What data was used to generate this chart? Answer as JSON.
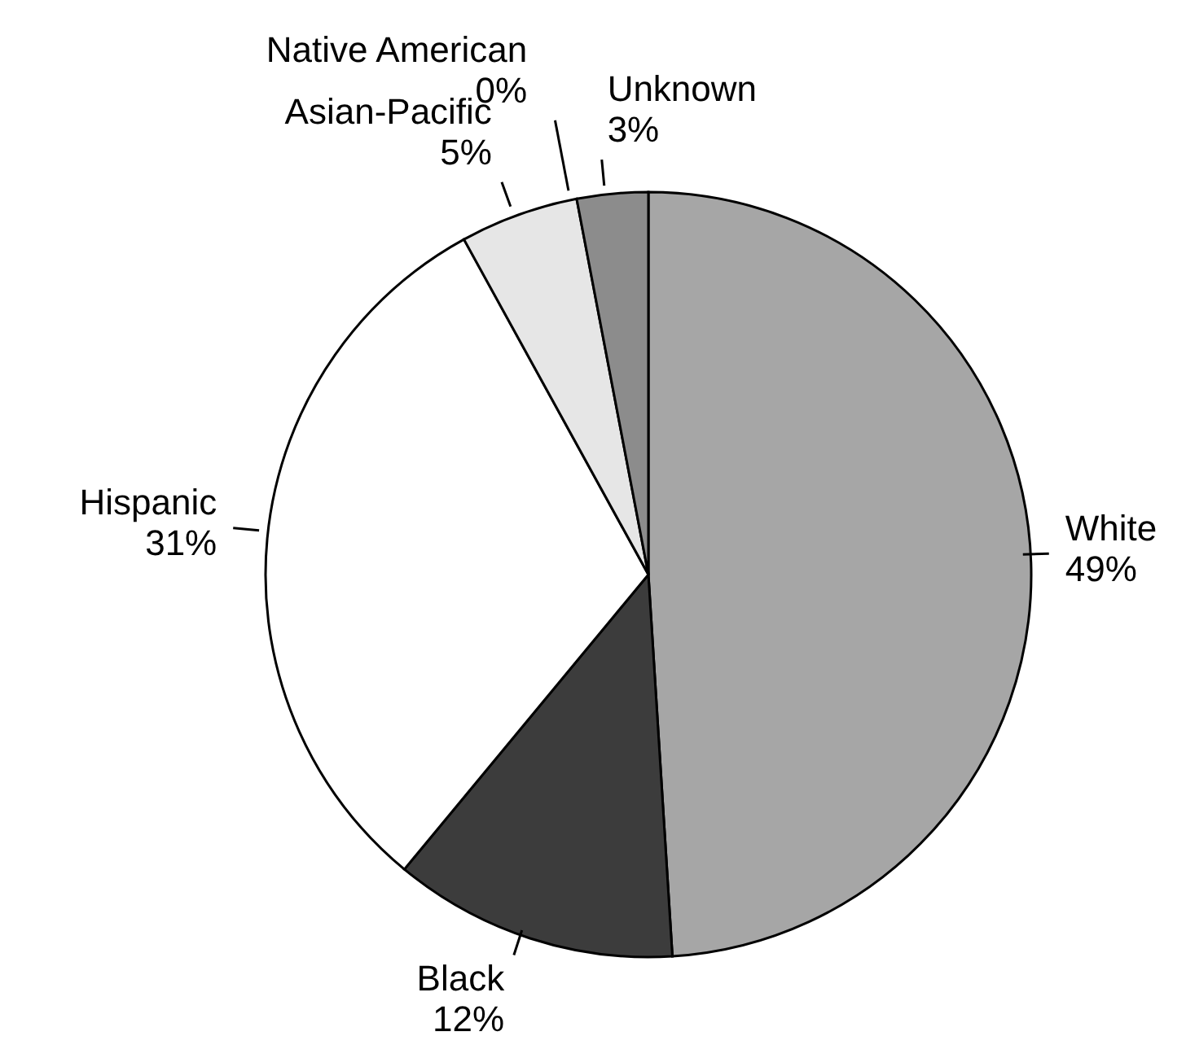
{
  "chart_data": {
    "type": "pie",
    "categories": [
      "White",
      "Black",
      "Hispanic",
      "Asian-Pacific",
      "Native American",
      "Unknown"
    ],
    "values": [
      49,
      12,
      31,
      5,
      0,
      3
    ],
    "value_labels": [
      "49%",
      "12%",
      "31%",
      "5%",
      "0%",
      "3%"
    ],
    "colors": [
      "#a6a6a6",
      "#3c3c3c",
      "#ffffff",
      "#e6e6e6",
      "#000000",
      "#8c8c8c"
    ]
  }
}
